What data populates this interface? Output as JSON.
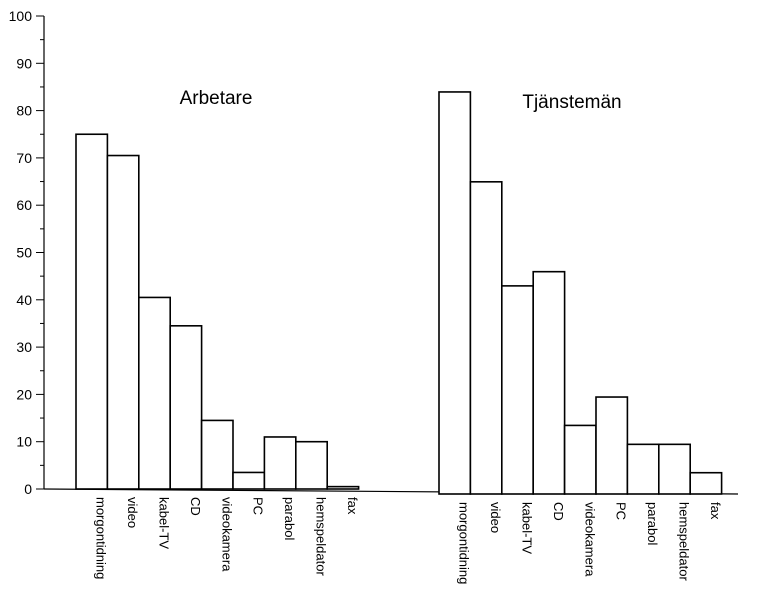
{
  "chart_data": {
    "type": "bar",
    "ylim": [
      0,
      100
    ],
    "yticks": [
      0,
      10,
      20,
      30,
      40,
      50,
      60,
      70,
      80,
      90,
      100
    ],
    "grid": false,
    "groups": [
      {
        "title": "Arbetare",
        "categories": [
          "morgontidning",
          "video",
          "kabel-TV",
          "CD",
          "videokamera",
          "PC",
          "parabol",
          "hemspeldator",
          "fax"
        ],
        "values": [
          75,
          70.5,
          40.5,
          34.5,
          14.5,
          3.5,
          11,
          10,
          0.5
        ]
      },
      {
        "title": "Tjänstemän",
        "categories": [
          "morgontidning",
          "video",
          "kabel-TV",
          "CD",
          "videokamera",
          "PC",
          "parabol",
          "hemspeldator",
          "fax"
        ],
        "values": [
          85,
          66,
          44,
          47,
          14.5,
          20.5,
          10.5,
          10.5,
          4.5
        ]
      }
    ]
  }
}
